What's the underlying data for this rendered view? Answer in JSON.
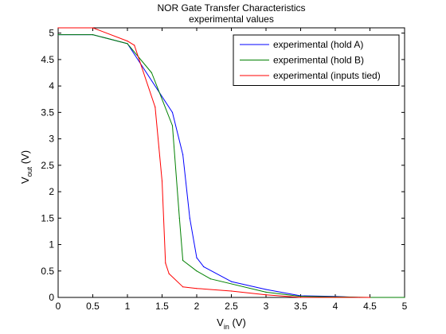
{
  "chart_data": {
    "type": "line",
    "title": "NOR Gate Transfer Characteristics",
    "subtitle": "experimental values",
    "xlabel": {
      "base": "V",
      "sub": "in",
      "suffix": " (V)"
    },
    "ylabel": {
      "base": "V",
      "sub": "out",
      "suffix": " (V)"
    },
    "xlim": [
      0,
      5
    ],
    "ylim": [
      0,
      5.1
    ],
    "xticks": [
      0,
      0.5,
      1,
      1.5,
      2,
      2.5,
      3,
      3.5,
      4,
      4.5,
      5
    ],
    "xtick_labels": [
      "0",
      "0.5",
      "1",
      "1.5",
      "2",
      "2.5",
      "3",
      "3.5",
      "4",
      "4.5",
      "5"
    ],
    "yticks": [
      0,
      0.5,
      1,
      1.5,
      2,
      2.5,
      3,
      3.5,
      4,
      4.5,
      5
    ],
    "ytick_labels": [
      "0",
      "0.5",
      "1",
      "1.5",
      "2",
      "2.5",
      "3",
      "3.5",
      "4",
      "4.5",
      "5"
    ],
    "grid": false,
    "legend_position": "top-right",
    "series": [
      {
        "name": "experimental (hold A)",
        "color": "#0000ff",
        "x": [
          0,
          0.5,
          1.0,
          1.65,
          1.8,
          1.9,
          2.0,
          2.1,
          2.5,
          3.0,
          3.5,
          4.0,
          4.35
        ],
        "y": [
          4.97,
          4.97,
          4.8,
          3.5,
          2.7,
          1.5,
          0.75,
          0.58,
          0.3,
          0.15,
          0.03,
          0.02,
          0.0
        ]
      },
      {
        "name": "experimental (hold B)",
        "color": "#008000",
        "x": [
          0,
          0.5,
          1.0,
          1.35,
          1.65,
          1.75,
          1.8,
          2.0,
          2.2,
          3.0,
          3.5,
          4.0,
          4.5,
          5.0
        ],
        "y": [
          4.97,
          4.97,
          4.8,
          4.25,
          3.25,
          1.5,
          0.7,
          0.5,
          0.35,
          0.1,
          0.02,
          0.01,
          0.0,
          0.0
        ]
      },
      {
        "name": "experimental (inputs tied)",
        "color": "#ff0000",
        "x": [
          0,
          0.5,
          1.0,
          1.1,
          1.4,
          1.5,
          1.55,
          1.6,
          1.8,
          2.0,
          2.5,
          3.0,
          3.5,
          4.0,
          4.5
        ],
        "y": [
          5.1,
          5.1,
          4.85,
          4.77,
          3.6,
          2.2,
          0.65,
          0.45,
          0.2,
          0.17,
          0.12,
          0.05,
          0.0,
          0.0,
          0.0
        ]
      }
    ]
  }
}
